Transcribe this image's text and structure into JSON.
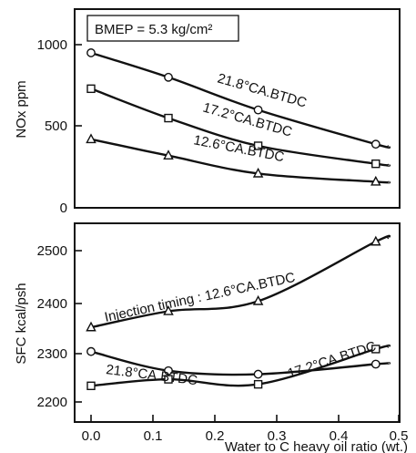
{
  "chart_data": [
    {
      "type": "line",
      "annotation_box": "BMEP = 5.3 kg/cm²",
      "ylabel": "NOx ppm",
      "xlim": [
        0,
        0.5
      ],
      "ylim": [
        0,
        1100
      ],
      "yticks": [
        "0",
        "500",
        "1000"
      ],
      "grid": false,
      "series": [
        {
          "name": "21.8°CA.BTDC",
          "marker": "circle",
          "x": [
            0.0,
            0.125,
            0.27,
            0.46
          ],
          "y": [
            950,
            800,
            600,
            390
          ]
        },
        {
          "name": "17.2°CA.BTDC",
          "marker": "square",
          "x": [
            0.0,
            0.125,
            0.27,
            0.46
          ],
          "y": [
            730,
            550,
            380,
            270
          ]
        },
        {
          "name": "12.6°CA.BTDC",
          "marker": "triangle",
          "x": [
            0.0,
            0.125,
            0.27,
            0.46
          ],
          "y": [
            420,
            320,
            210,
            160
          ]
        }
      ]
    },
    {
      "type": "line",
      "ylabel": "SFC kcal/psh",
      "xlabel": "Water to C heavy oil ratio (wt.)",
      "xlim": [
        0,
        0.5
      ],
      "ylim": [
        2200,
        2550
      ],
      "xticks": [
        "0.0",
        "0.1",
        "0.2",
        "0.3",
        "0.4",
        "0.5"
      ],
      "yticks": [
        "2200",
        "2300",
        "2400",
        "2500"
      ],
      "grid": false,
      "series": [
        {
          "name": "Injection timing : 12.6°CA.BTDC",
          "marker": "triangle",
          "x": [
            0.0,
            0.125,
            0.27,
            0.46
          ],
          "y": [
            2348,
            2380,
            2400,
            2518
          ]
        },
        {
          "name": "21.8°CA.BTDC",
          "marker": "circle",
          "x": [
            0.0,
            0.125,
            0.27,
            0.46
          ],
          "y": [
            2300,
            2262,
            2255,
            2275
          ]
        },
        {
          "name": "17.2°CA.BTDC",
          "marker": "square",
          "x": [
            0.0,
            0.125,
            0.27,
            0.46
          ],
          "y": [
            2232,
            2245,
            2235,
            2305
          ]
        }
      ]
    }
  ]
}
